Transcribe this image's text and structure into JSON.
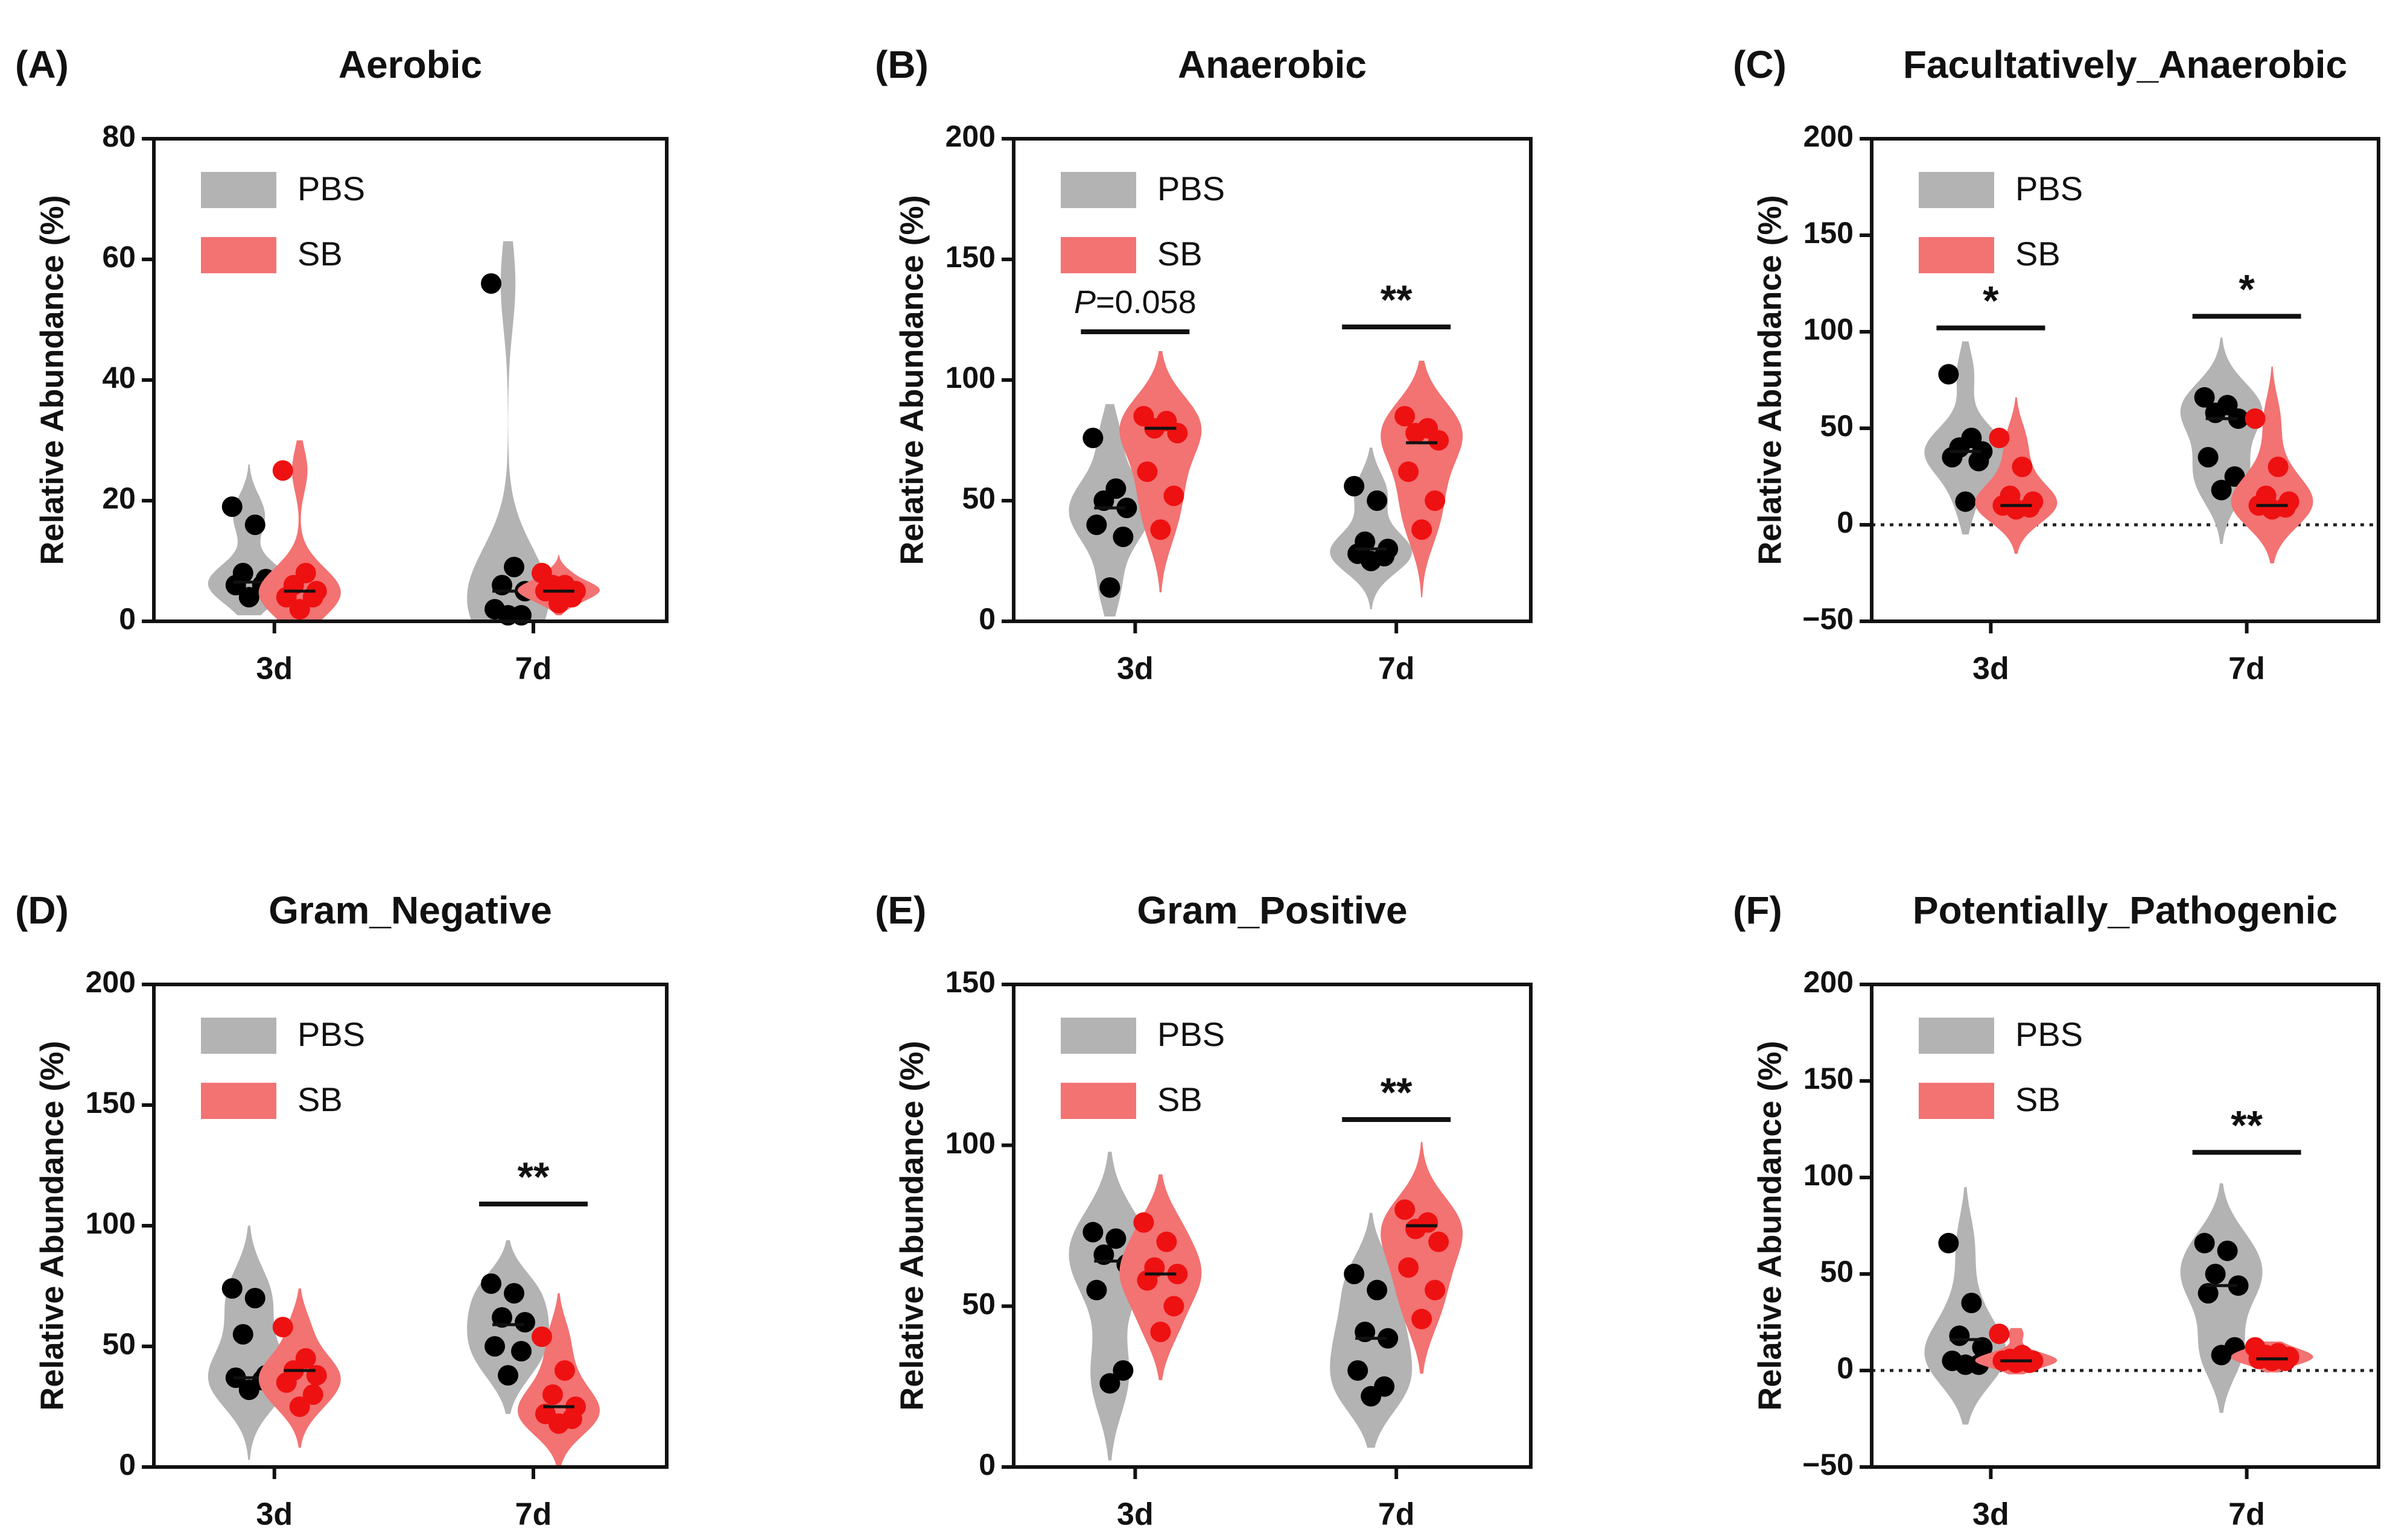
{
  "colors": {
    "pbs_fill": "#b3b3b3",
    "pbs_point": "#000000",
    "sb_fill": "#f37272",
    "sb_point": "#ee1111",
    "axis": "#111111"
  },
  "chart_data": [
    {
      "type": "violin",
      "panel": "(A)",
      "title": "Aerobic",
      "ylabel": "Relative Abundance (%)",
      "ylim": [
        0,
        80
      ],
      "yticks": [
        0,
        20,
        40,
        60,
        80
      ],
      "ytick_labels": [
        "0",
        "20",
        "40",
        "60",
        "80"
      ],
      "zero_line": false,
      "categories": [
        "3d",
        "7d"
      ],
      "legend": [
        "PBS",
        "SB"
      ],
      "series": [
        {
          "name": "PBS",
          "groups": [
            {
              "category": "3d",
              "points": [
                19,
                16,
                8,
                7,
                6,
                6,
                4
              ],
              "median": 6.5,
              "range": [
                1,
                26
              ]
            },
            {
              "category": "7d",
              "points": [
                56,
                9,
                6,
                5,
                2,
                1,
                1
              ],
              "median": 5,
              "range": [
                0,
                63
              ]
            }
          ]
        },
        {
          "name": "SB",
          "groups": [
            {
              "category": "3d",
              "points": [
                25,
                8,
                6,
                5,
                4,
                4,
                2
              ],
              "median": 5,
              "range": [
                0,
                30
              ]
            },
            {
              "category": "7d",
              "points": [
                8,
                6,
                6,
                5,
                5,
                4,
                3
              ],
              "median": 5,
              "range": [
                1,
                11
              ]
            }
          ]
        }
      ],
      "annotations": []
    },
    {
      "type": "violin",
      "panel": "(B)",
      "title": "Anaerobic",
      "ylabel": "Relative Abundance (%)",
      "ylim": [
        0,
        200
      ],
      "yticks": [
        0,
        50,
        100,
        150,
        200
      ],
      "ytick_labels": [
        "0",
        "50",
        "100",
        "150",
        "200"
      ],
      "zero_line": false,
      "categories": [
        "3d",
        "7d"
      ],
      "legend": [
        "PBS",
        "SB"
      ],
      "series": [
        {
          "name": "PBS",
          "groups": [
            {
              "category": "3d",
              "points": [
                76,
                55,
                50,
                47,
                40,
                35,
                14
              ],
              "median": 47,
              "range": [
                2,
                90
              ]
            },
            {
              "category": "7d",
              "points": [
                56,
                50,
                33,
                30,
                28,
                27,
                25
              ],
              "median": 30,
              "range": [
                5,
                72
              ]
            }
          ]
        },
        {
          "name": "SB",
          "groups": [
            {
              "category": "3d",
              "points": [
                85,
                83,
                80,
                78,
                62,
                52,
                38
              ],
              "median": 80,
              "range": [
                12,
                112
              ]
            },
            {
              "category": "7d",
              "points": [
                85,
                80,
                78,
                75,
                62,
                50,
                38
              ],
              "median": 74,
              "range": [
                10,
                108
              ]
            }
          ]
        }
      ],
      "annotations": [
        {
          "category": "3d",
          "y": 120,
          "text_prefix": "P",
          "text": "=0.058"
        },
        {
          "category": "7d",
          "y": 122,
          "text": "**"
        }
      ]
    },
    {
      "type": "violin",
      "panel": "(C)",
      "title": "Facultatively_Anaerobic",
      "ylabel": "Relative Abundance (%)",
      "ylim": [
        -50,
        200
      ],
      "yticks": [
        -50,
        0,
        50,
        100,
        150,
        200
      ],
      "ytick_labels": [
        "−50",
        "0",
        "50",
        "100",
        "150",
        "200"
      ],
      "zero_line": true,
      "categories": [
        "3d",
        "7d"
      ],
      "legend": [
        "PBS",
        "SB"
      ],
      "series": [
        {
          "name": "PBS",
          "groups": [
            {
              "category": "3d",
              "points": [
                78,
                45,
                40,
                38,
                35,
                33,
                12
              ],
              "median": 38,
              "range": [
                -5,
                95
              ]
            },
            {
              "category": "7d",
              "points": [
                66,
                62,
                58,
                55,
                35,
                25,
                18
              ],
              "median": 55,
              "range": [
                -10,
                97
              ]
            }
          ]
        },
        {
          "name": "SB",
          "groups": [
            {
              "category": "3d",
              "points": [
                45,
                30,
                15,
                12,
                10,
                9,
                8
              ],
              "median": 10,
              "range": [
                -15,
                66
              ]
            },
            {
              "category": "7d",
              "points": [
                55,
                30,
                15,
                12,
                10,
                9,
                8
              ],
              "median": 10,
              "range": [
                -20,
                82
              ]
            }
          ]
        }
      ],
      "annotations": [
        {
          "category": "3d",
          "y": 102,
          "text": "*"
        },
        {
          "category": "7d",
          "y": 108,
          "text": "*"
        }
      ]
    },
    {
      "type": "violin",
      "panel": "(D)",
      "title": "Gram_Negative",
      "ylabel": "Relative Abundance (%)",
      "ylim": [
        0,
        200
      ],
      "yticks": [
        0,
        50,
        100,
        150,
        200
      ],
      "ytick_labels": [
        "0",
        "50",
        "100",
        "150",
        "200"
      ],
      "zero_line": false,
      "categories": [
        "3d",
        "7d"
      ],
      "legend": [
        "PBS",
        "SB"
      ],
      "series": [
        {
          "name": "PBS",
          "groups": [
            {
              "category": "3d",
              "points": [
                74,
                70,
                55,
                38,
                37,
                36,
                32
              ],
              "median": 37,
              "range": [
                3,
                100
              ]
            },
            {
              "category": "7d",
              "points": [
                76,
                72,
                62,
                60,
                50,
                48,
                38
              ],
              "median": 59,
              "range": [
                22,
                94
              ]
            }
          ]
        },
        {
          "name": "SB",
          "groups": [
            {
              "category": "3d",
              "points": [
                58,
                45,
                40,
                38,
                35,
                30,
                25
              ],
              "median": 40,
              "range": [
                8,
                74
              ]
            },
            {
              "category": "7d",
              "points": [
                54,
                40,
                30,
                25,
                22,
                20,
                18
              ],
              "median": 25,
              "range": [
                0,
                72
              ]
            }
          ]
        }
      ],
      "annotations": [
        {
          "category": "7d",
          "y": 109,
          "text": "**"
        }
      ]
    },
    {
      "type": "violin",
      "panel": "(E)",
      "title": "Gram_Positive",
      "ylabel": "Relative Abundance (%)",
      "ylim": [
        0,
        150
      ],
      "yticks": [
        0,
        50,
        100,
        150
      ],
      "ytick_labels": [
        "0",
        "50",
        "100",
        "150"
      ],
      "zero_line": false,
      "categories": [
        "3d",
        "7d"
      ],
      "legend": [
        "PBS",
        "SB"
      ],
      "series": [
        {
          "name": "PBS",
          "groups": [
            {
              "category": "3d",
              "points": [
                73,
                71,
                66,
                63,
                55,
                30,
                26
              ],
              "median": 64,
              "range": [
                2,
                98
              ]
            },
            {
              "category": "7d",
              "points": [
                60,
                55,
                42,
                40,
                30,
                25,
                22
              ],
              "median": 40,
              "range": [
                6,
                79
              ]
            }
          ]
        },
        {
          "name": "SB",
          "groups": [
            {
              "category": "3d",
              "points": [
                76,
                70,
                62,
                60,
                58,
                50,
                42
              ],
              "median": 60,
              "range": [
                27,
                91
              ]
            },
            {
              "category": "7d",
              "points": [
                80,
                76,
                74,
                70,
                62,
                55,
                46
              ],
              "median": 75,
              "range": [
                29,
                101
              ]
            }
          ]
        }
      ],
      "annotations": [
        {
          "category": "7d",
          "y": 108,
          "text": "**"
        }
      ]
    },
    {
      "type": "violin",
      "panel": "(F)",
      "title": "Potentially_Pathogenic",
      "ylabel": "Relative Abundance (%)",
      "ylim": [
        -50,
        200
      ],
      "yticks": [
        -50,
        0,
        50,
        100,
        150,
        200
      ],
      "ytick_labels": [
        "−50",
        "0",
        "50",
        "100",
        "150",
        "200"
      ],
      "zero_line": true,
      "categories": [
        "3d",
        "7d"
      ],
      "legend": [
        "PBS",
        "SB"
      ],
      "series": [
        {
          "name": "PBS",
          "groups": [
            {
              "category": "3d",
              "points": [
                66,
                35,
                18,
                12,
                5,
                3,
                3
              ],
              "median": 16,
              "range": [
                -28,
                95
              ]
            },
            {
              "category": "7d",
              "points": [
                66,
                62,
                50,
                44,
                40,
                12,
                8
              ],
              "median": 44,
              "range": [
                -22,
                97
              ]
            }
          ]
        },
        {
          "name": "SB",
          "groups": [
            {
              "category": "3d",
              "points": [
                19,
                8,
                6,
                5,
                5,
                4,
                4
              ],
              "median": 5,
              "range": [
                -2,
                22
              ]
            },
            {
              "category": "7d",
              "points": [
                12,
                9,
                8,
                7,
                6,
                5,
                5
              ],
              "median": 6,
              "range": [
                -1,
                15
              ]
            }
          ]
        }
      ],
      "annotations": [
        {
          "category": "7d",
          "y": 113,
          "text": "**"
        }
      ]
    }
  ]
}
